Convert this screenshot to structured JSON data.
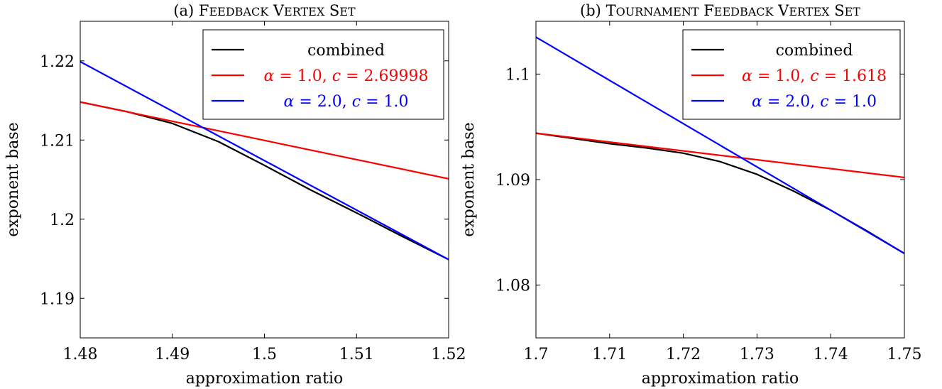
{
  "chart_data": [
    {
      "type": "line",
      "title": "(a) Feedback Vertex Set",
      "xlabel": "approximation ratio",
      "ylabel": "exponent base",
      "xlim": [
        1.48,
        1.52
      ],
      "ylim": [
        1.185,
        1.225
      ],
      "xticks": [
        1.48,
        1.49,
        1.5,
        1.51,
        1.52
      ],
      "xtick_labels": [
        "1.48",
        "1.49",
        "1.5",
        "1.51",
        "1.52"
      ],
      "yticks": [
        1.19,
        1.2,
        1.21,
        1.22
      ],
      "ytick_labels": [
        "1.19",
        "1.2",
        "1.21",
        "1.22"
      ],
      "grid": false,
      "legend_position": "top-right",
      "series": [
        {
          "name": "combined",
          "color": "#000000",
          "x": [
            1.48,
            1.485,
            1.49,
            1.495,
            1.5,
            1.505,
            1.51,
            1.515,
            1.52
          ],
          "y": [
            1.2148,
            1.2136,
            1.2121,
            1.2098,
            1.2068,
            1.2037,
            1.2008,
            1.1978,
            1.1949
          ]
        },
        {
          "name": "α = 1.0, c = 2.69998",
          "color": "#ff0000",
          "x": [
            1.48,
            1.52
          ],
          "y": [
            1.2148,
            1.2051
          ]
        },
        {
          "name": "α = 2.0, c = 1.0",
          "color": "#0000ff",
          "x": [
            1.48,
            1.52
          ],
          "y": [
            1.2199,
            1.1949
          ]
        }
      ]
    },
    {
      "type": "line",
      "title": "(b) Tournament Feedback Vertex Set",
      "xlabel": "approximation ratio",
      "ylabel": "exponent base",
      "xlim": [
        1.7,
        1.75
      ],
      "ylim": [
        1.075,
        1.105
      ],
      "xticks": [
        1.7,
        1.71,
        1.72,
        1.73,
        1.74,
        1.75
      ],
      "xtick_labels": [
        "1.7",
        "1.71",
        "1.72",
        "1.73",
        "1.74",
        "1.75"
      ],
      "yticks": [
        1.08,
        1.09,
        1.1
      ],
      "ytick_labels": [
        "1.08",
        "1.09",
        "1.1"
      ],
      "grid": false,
      "legend_position": "top-right",
      "series": [
        {
          "name": "combined",
          "color": "#000000",
          "x": [
            1.7,
            1.705,
            1.71,
            1.715,
            1.72,
            1.725,
            1.73,
            1.735,
            1.74,
            1.745,
            1.75
          ],
          "y": [
            1.0944,
            1.0939,
            1.0934,
            1.093,
            1.0925,
            1.0917,
            1.0905,
            1.0889,
            1.0871,
            1.0851,
            1.083
          ]
        },
        {
          "name": "α = 1.0, c = 1.618",
          "color": "#ff0000",
          "x": [
            1.7,
            1.75
          ],
          "y": [
            1.0944,
            1.0902
          ]
        },
        {
          "name": "α = 2.0, c = 1.0",
          "color": "#0000ff",
          "x": [
            1.7,
            1.75
          ],
          "y": [
            1.1035,
            1.083
          ]
        }
      ]
    }
  ]
}
